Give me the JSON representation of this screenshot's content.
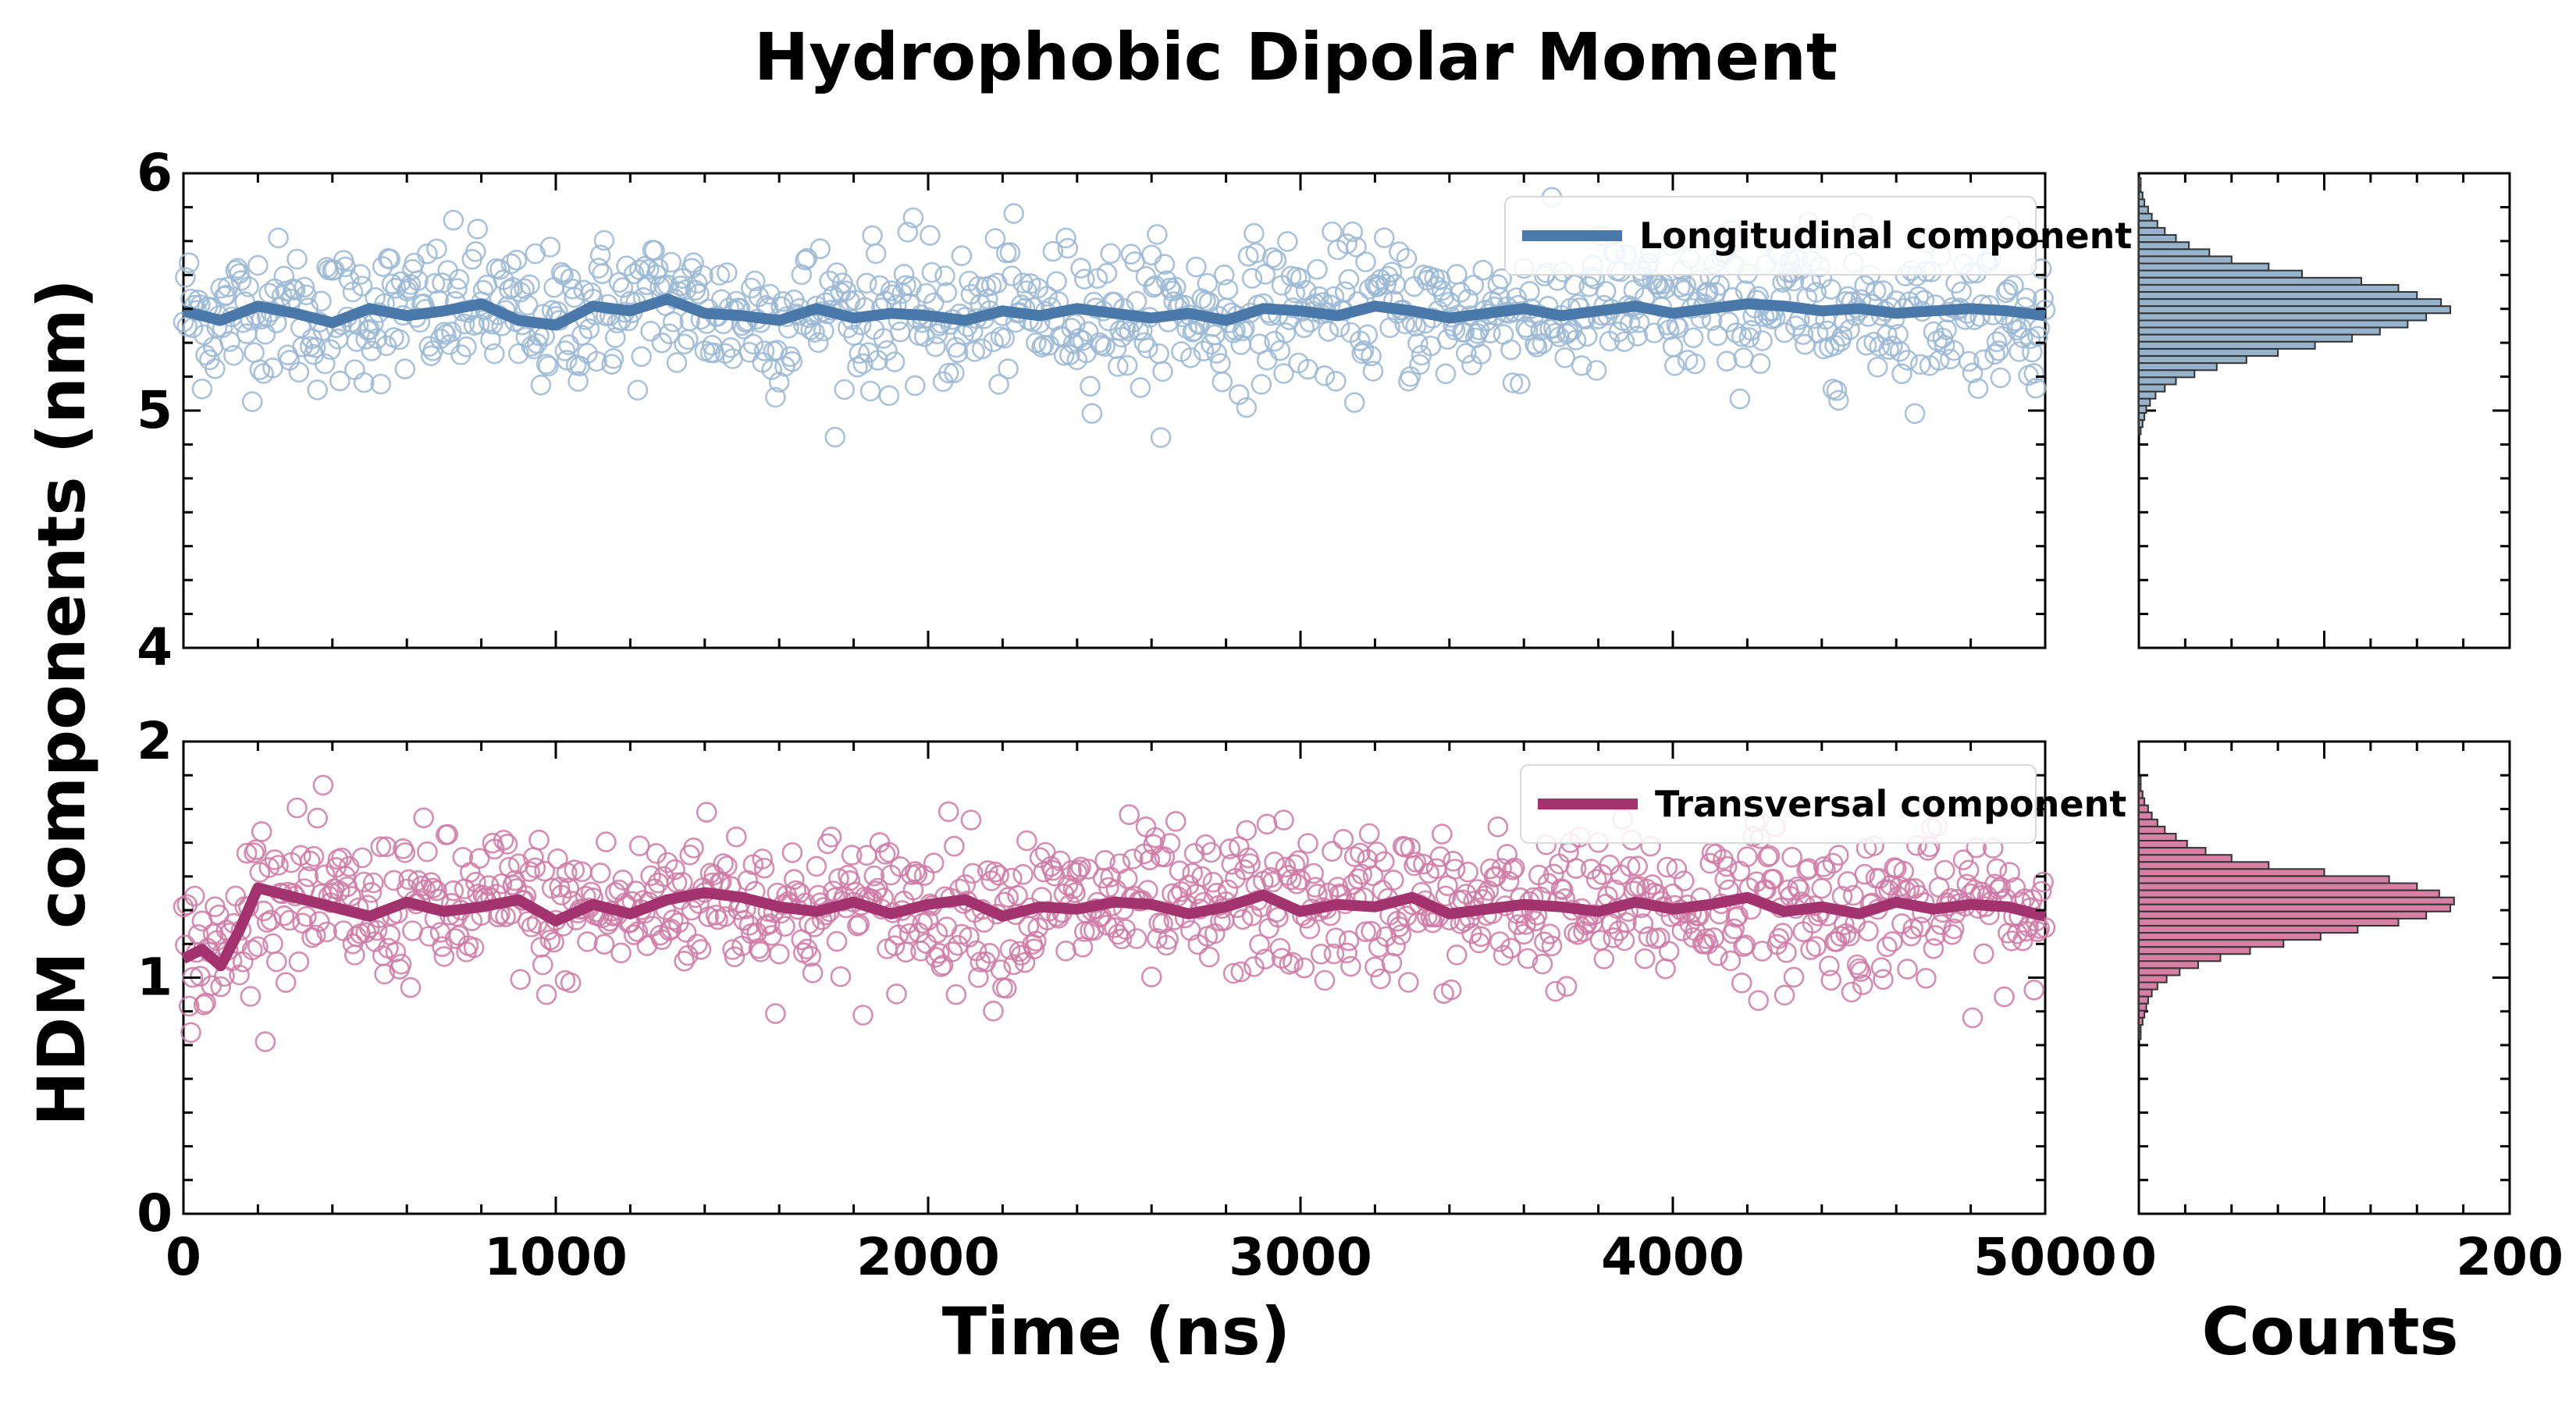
{
  "chart_data": {
    "type": "scatter",
    "title": "Hydrophobic Dipolar Moment",
    "ylabel": "HDM components (nm)",
    "xlabel": "Time (ns)",
    "hist_xlabel": "Counts",
    "xlim": [
      0,
      5000
    ],
    "xticks": [
      0,
      1000,
      2000,
      3000,
      4000,
      5000
    ],
    "hist_xlim": [
      0,
      200
    ],
    "hist_xticks": [
      0,
      200
    ],
    "panels": [
      {
        "name": "Longitudinal component",
        "color": "#4a78a8",
        "point_color": "#9bb8d3",
        "hist_color": "#97b3cc",
        "ylim": [
          4,
          6
        ],
        "yticks": [
          4,
          5,
          6
        ],
        "x_step": 5,
        "x_start": 0,
        "running_mean_x": [
          0,
          100,
          200,
          300,
          400,
          500,
          600,
          700,
          800,
          900,
          1000,
          1100,
          1200,
          1300,
          1400,
          1500,
          1600,
          1700,
          1800,
          1900,
          2000,
          2100,
          2200,
          2300,
          2400,
          2500,
          2600,
          2700,
          2800,
          2900,
          3000,
          3100,
          3200,
          3300,
          3400,
          3500,
          3600,
          3700,
          3800,
          3900,
          4000,
          4100,
          4200,
          4300,
          4400,
          4500,
          4600,
          4700,
          4800,
          4900,
          5000
        ],
        "running_mean_y": [
          5.42,
          5.38,
          5.44,
          5.41,
          5.37,
          5.43,
          5.4,
          5.42,
          5.45,
          5.38,
          5.36,
          5.44,
          5.42,
          5.47,
          5.41,
          5.4,
          5.38,
          5.43,
          5.39,
          5.41,
          5.4,
          5.38,
          5.42,
          5.4,
          5.43,
          5.41,
          5.39,
          5.41,
          5.38,
          5.43,
          5.42,
          5.4,
          5.44,
          5.42,
          5.39,
          5.41,
          5.43,
          5.4,
          5.42,
          5.44,
          5.41,
          5.43,
          5.45,
          5.44,
          5.42,
          5.43,
          5.41,
          5.42,
          5.43,
          5.42,
          5.4
        ],
        "mean": 5.42,
        "spread": 0.15,
        "hist_bins_y": [
          5.98,
          5.95,
          5.92,
          5.89,
          5.86,
          5.83,
          5.8,
          5.77,
          5.74,
          5.71,
          5.68,
          5.65,
          5.62,
          5.59,
          5.56,
          5.53,
          5.5,
          5.47,
          5.44,
          5.41,
          5.38,
          5.35,
          5.32,
          5.29,
          5.26,
          5.23,
          5.2,
          5.17,
          5.14,
          5.11,
          5.08,
          5.05,
          5.02,
          4.99,
          4.96,
          4.93
        ],
        "hist_counts": [
          1,
          1,
          2,
          3,
          5,
          7,
          10,
          14,
          20,
          27,
          38,
          50,
          70,
          88,
          120,
          140,
          150,
          163,
          168,
          155,
          145,
          130,
          115,
          95,
          75,
          58,
          42,
          30,
          20,
          14,
          9,
          6,
          4,
          3,
          2,
          1
        ]
      },
      {
        "name": "Transversal component",
        "color": "#a2336f",
        "point_color": "#cf7aa5",
        "hist_color": "#d87fa4",
        "ylim": [
          0,
          2
        ],
        "yticks": [
          0,
          1,
          2
        ],
        "x_step": 5,
        "x_start": 0,
        "running_mean_x": [
          0,
          50,
          100,
          150,
          200,
          300,
          400,
          500,
          600,
          700,
          800,
          900,
          1000,
          1100,
          1200,
          1300,
          1400,
          1500,
          1600,
          1700,
          1800,
          1900,
          2000,
          2100,
          2200,
          2300,
          2400,
          2500,
          2600,
          2700,
          2800,
          2900,
          3000,
          3100,
          3200,
          3300,
          3400,
          3500,
          3600,
          3700,
          3800,
          3900,
          4000,
          4100,
          4200,
          4300,
          4400,
          4500,
          4600,
          4700,
          4800,
          4900,
          5000
        ],
        "running_mean_y": [
          1.08,
          1.12,
          1.05,
          1.2,
          1.38,
          1.34,
          1.3,
          1.26,
          1.32,
          1.28,
          1.3,
          1.33,
          1.24,
          1.31,
          1.27,
          1.33,
          1.36,
          1.34,
          1.3,
          1.28,
          1.32,
          1.27,
          1.31,
          1.33,
          1.26,
          1.3,
          1.29,
          1.32,
          1.31,
          1.27,
          1.3,
          1.35,
          1.28,
          1.31,
          1.3,
          1.34,
          1.27,
          1.29,
          1.31,
          1.3,
          1.28,
          1.32,
          1.29,
          1.31,
          1.34,
          1.28,
          1.3,
          1.27,
          1.32,
          1.29,
          1.31,
          1.3,
          1.26
        ],
        "mean": 1.29,
        "spread": 0.16,
        "hist_bins_y": [
          1.85,
          1.82,
          1.79,
          1.76,
          1.73,
          1.7,
          1.67,
          1.64,
          1.61,
          1.58,
          1.55,
          1.52,
          1.49,
          1.46,
          1.43,
          1.4,
          1.37,
          1.34,
          1.31,
          1.28,
          1.25,
          1.22,
          1.19,
          1.16,
          1.13,
          1.1,
          1.07,
          1.04,
          1.01,
          0.98,
          0.95,
          0.92,
          0.89,
          0.86,
          0.83,
          0.8,
          0.77
        ],
        "hist_counts": [
          1,
          1,
          2,
          3,
          5,
          7,
          10,
          14,
          20,
          26,
          36,
          50,
          70,
          100,
          135,
          150,
          162,
          170,
          168,
          155,
          140,
          118,
          98,
          78,
          60,
          44,
          32,
          22,
          15,
          10,
          7,
          5,
          4,
          3,
          2,
          1,
          1
        ]
      }
    ]
  }
}
